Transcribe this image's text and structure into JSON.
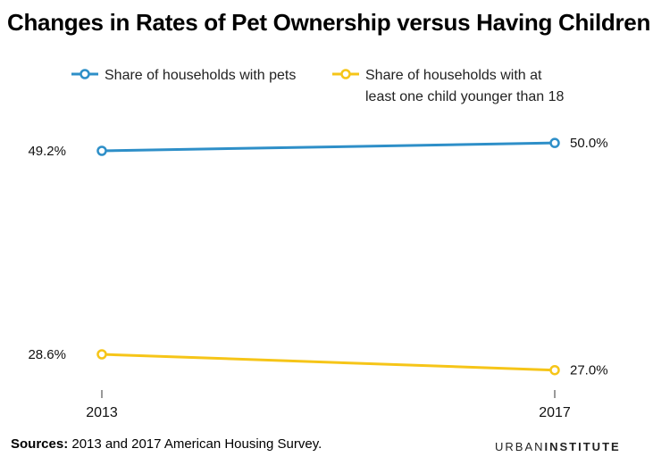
{
  "chart_data": {
    "type": "line",
    "title": "Changes in Rates of Pet Ownership versus Having Children",
    "x": [
      "2013",
      "2017"
    ],
    "ylim": [
      20,
      55
    ],
    "series": [
      {
        "name": "Share of households with pets",
        "legend_lines": [
          "Share of households with pets"
        ],
        "color": "#2e8fc8",
        "values": [
          49.2,
          50.0
        ],
        "labels": [
          "49.2%",
          "50.0%"
        ]
      },
      {
        "name": "Share of households with at least one child younger than 18",
        "legend_lines": [
          "Share of households with at",
          "least one child younger than 18"
        ],
        "color": "#f6c518",
        "values": [
          28.6,
          27.0
        ],
        "labels": [
          "28.6%",
          "27.0%"
        ]
      }
    ],
    "xlabel": "",
    "ylabel": "",
    "grid": false,
    "legend": "top"
  },
  "footer": {
    "source_label": "Sources:",
    "source_text": "2013 and 2017 American Housing Survey.",
    "brand_urban": "URBAN",
    "brand_institute": "INSTITUTE"
  }
}
